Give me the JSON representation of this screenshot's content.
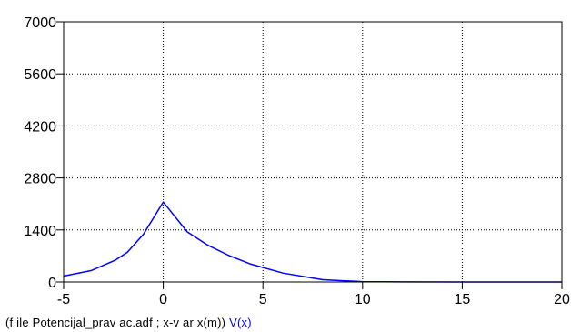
{
  "chart_data": {
    "type": "line",
    "title": "",
    "xlabel": "",
    "ylabel": "",
    "xlim": [
      -5,
      20
    ],
    "ylim": [
      0,
      7000
    ],
    "xticks": [
      -5,
      0,
      5,
      10,
      15,
      20
    ],
    "yticks": [
      0,
      1400,
      2800,
      4200,
      5600,
      7000
    ],
    "x_tick_labels": [
      "-5",
      "0",
      "5",
      "10",
      "15",
      "20"
    ],
    "y_tick_labels": [
      "0",
      "1400",
      "2800",
      "4200",
      "5600",
      "7000"
    ],
    "grid": true,
    "series": [
      {
        "name": "V(x)",
        "color": "#0000ff",
        "x": [
          -5,
          -3.6,
          -2.4,
          -1.8,
          -1.0,
          0.0,
          1.2,
          2.2,
          3.3,
          4.4,
          6.0,
          8.0,
          10.0,
          12.0,
          15.0,
          20.0
        ],
        "y": [
          160,
          310,
          590,
          800,
          1280,
          2150,
          1350,
          1000,
          710,
          480,
          240,
          60,
          8,
          2,
          1,
          0
        ]
      }
    ]
  },
  "caption": {
    "text": "(f ile Potencijal_prav ac.adf ;  x-v ar x(m))",
    "series_label": "V(x)"
  }
}
